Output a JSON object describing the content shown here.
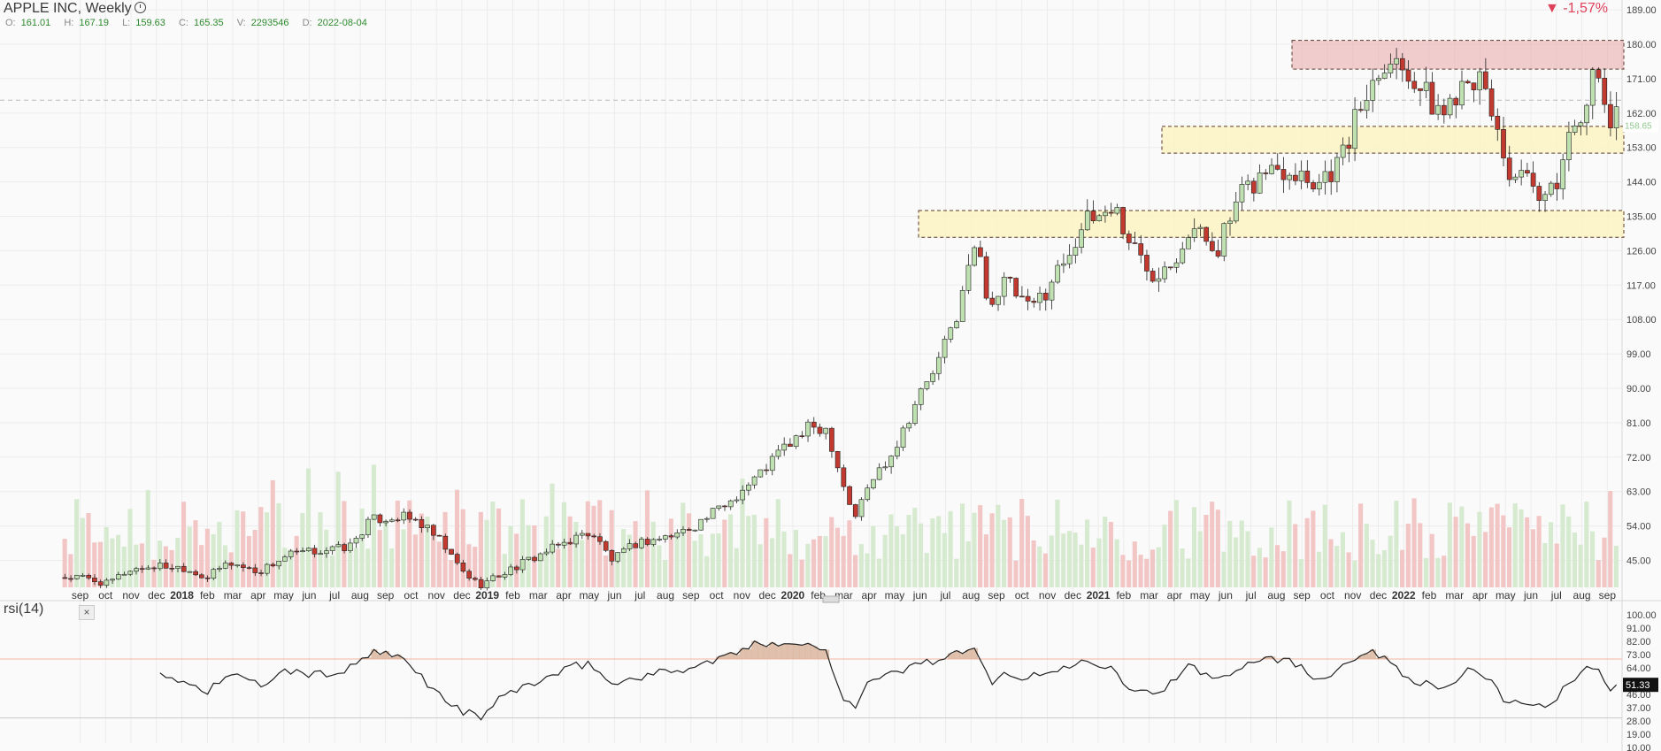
{
  "header": {
    "title": "APPLE INC, Weekly",
    "change": "-1,57%",
    "ohlc": [
      {
        "k": "O:",
        "v": "161.01"
      },
      {
        "k": "H:",
        "v": "167.19"
      },
      {
        "k": "L:",
        "v": "159.63"
      },
      {
        "k": "C:",
        "v": "165.35"
      },
      {
        "k": "V:",
        "v": "2293546"
      },
      {
        "k": "D:",
        "v": "2022-08-04"
      }
    ]
  },
  "indicator": {
    "label": "rsi(14)",
    "close_label": "×",
    "value_label": "51.33"
  },
  "colors": {
    "up": "#5faa45",
    "upFill": "#bfe0b0",
    "down": "#c23a2f",
    "downFill": "#c23a2f",
    "volUp": "#d6ead0",
    "volDown": "#f3c6c6",
    "resist": "#e9a5a8",
    "support": "#fbf3c2"
  },
  "chart_data": {
    "type": "candlestick",
    "title": "APPLE INC, Weekly",
    "y_ticks": [
      "189.00",
      "180.00",
      "171.00",
      "162.00",
      "153.00",
      "144.00",
      "135.00",
      "126.00",
      "117.00",
      "108.00",
      "99.00",
      "90.00",
      "81.00",
      "72.00",
      "63.00",
      "54.00",
      "45.00"
    ],
    "last_price_label": "158.65",
    "x_tick_labels": [
      "sep",
      "oct",
      "nov",
      "dec",
      "2018",
      "feb",
      "mar",
      "apr",
      "may",
      "jun",
      "jul",
      "aug",
      "sep",
      "oct",
      "nov",
      "dec",
      "2019",
      "feb",
      "mar",
      "apr",
      "may",
      "jun",
      "jul",
      "aug",
      "sep",
      "oct",
      "nov",
      "dec",
      "2020",
      "feb",
      "mar",
      "apr",
      "may",
      "jun",
      "jul",
      "aug",
      "sep",
      "oct",
      "nov",
      "dec",
      "2021",
      "feb",
      "mar",
      "apr",
      "may",
      "jun",
      "jul",
      "aug",
      "sep",
      "oct",
      "nov",
      "dec",
      "2022",
      "feb",
      "mar",
      "apr",
      "may",
      "jun",
      "jul",
      "aug",
      "sep"
    ],
    "price_path": [
      [
        2017.67,
        40.5
      ],
      [
        2017.75,
        38.8
      ],
      [
        2017.82,
        42.5
      ],
      [
        2017.92,
        43.6
      ],
      [
        2018.0,
        43.2
      ],
      [
        2018.08,
        40.5
      ],
      [
        2018.15,
        44.5
      ],
      [
        2018.25,
        42.0
      ],
      [
        2018.35,
        46.5
      ],
      [
        2018.45,
        47.5
      ],
      [
        2018.55,
        48.5
      ],
      [
        2018.62,
        55.5
      ],
      [
        2018.72,
        56.5
      ],
      [
        2018.78,
        55.0
      ],
      [
        2018.85,
        50.0
      ],
      [
        2018.92,
        42.5
      ],
      [
        2018.98,
        38.5
      ],
      [
        2019.08,
        42.5
      ],
      [
        2019.18,
        46.5
      ],
      [
        2019.3,
        51.0
      ],
      [
        2019.35,
        52.5
      ],
      [
        2019.42,
        45.0
      ],
      [
        2019.5,
        49.5
      ],
      [
        2019.62,
        51.5
      ],
      [
        2019.7,
        54.5
      ],
      [
        2019.8,
        60.0
      ],
      [
        2019.9,
        67.0
      ],
      [
        2019.98,
        74.0
      ],
      [
        2020.08,
        80.0
      ],
      [
        2020.13,
        79.5
      ],
      [
        2020.18,
        66.0
      ],
      [
        2020.22,
        56.0
      ],
      [
        2020.27,
        65.0
      ],
      [
        2020.35,
        74.0
      ],
      [
        2020.42,
        86.0
      ],
      [
        2020.5,
        97.0
      ],
      [
        2020.57,
        112.0
      ],
      [
        2020.62,
        128.0
      ],
      [
        2020.67,
        112.0
      ],
      [
        2020.72,
        118.0
      ],
      [
        2020.8,
        110.0
      ],
      [
        2020.88,
        119.0
      ],
      [
        2020.97,
        132.0
      ],
      [
        2021.08,
        138.0
      ],
      [
        2021.12,
        130.0
      ],
      [
        2021.2,
        120.0
      ],
      [
        2021.28,
        125.0
      ],
      [
        2021.33,
        132.0
      ],
      [
        2021.42,
        127.0
      ],
      [
        2021.5,
        140.0
      ],
      [
        2021.58,
        147.0
      ],
      [
        2021.67,
        148.0
      ],
      [
        2021.75,
        144.0
      ],
      [
        2021.83,
        150.0
      ],
      [
        2021.9,
        165.0
      ],
      [
        2021.97,
        177.0
      ],
      [
        2022.05,
        174.0
      ],
      [
        2022.12,
        165.0
      ],
      [
        2022.17,
        162.0
      ],
      [
        2022.25,
        174.0
      ],
      [
        2022.32,
        165.0
      ],
      [
        2022.38,
        147.0
      ],
      [
        2022.45,
        143.0
      ],
      [
        2022.5,
        137.0
      ],
      [
        2022.55,
        146.0
      ],
      [
        2022.6,
        160.0
      ],
      [
        2022.65,
        167.0
      ],
      [
        2022.67,
        172.0
      ],
      [
        2022.72,
        160.0
      ]
    ],
    "resistance_zone": [
      173.5,
      181.0
    ],
    "support_zones": [
      [
        151.5,
        158.5
      ],
      [
        129.5,
        136.5
      ]
    ],
    "rsi_ticks": [
      "100.00",
      "91.00",
      "82.00",
      "73.00",
      "64.00",
      "55.00",
      "46.00",
      "37.00",
      "28.00",
      "19.00",
      "10.00"
    ],
    "rsi_overbought": 70,
    "rsi_oversold": 30,
    "rsi_path": [
      [
        2017.92,
        58
      ],
      [
        2018.0,
        55
      ],
      [
        2018.08,
        48
      ],
      [
        2018.15,
        60
      ],
      [
        2018.25,
        52
      ],
      [
        2018.35,
        62
      ],
      [
        2018.45,
        59
      ],
      [
        2018.55,
        63
      ],
      [
        2018.62,
        74
      ],
      [
        2018.72,
        71
      ],
      [
        2018.78,
        60
      ],
      [
        2018.85,
        45
      ],
      [
        2018.92,
        35
      ],
      [
        2018.98,
        30
      ],
      [
        2019.08,
        48
      ],
      [
        2019.18,
        55
      ],
      [
        2019.3,
        65
      ],
      [
        2019.35,
        67
      ],
      [
        2019.42,
        52
      ],
      [
        2019.5,
        58
      ],
      [
        2019.62,
        62
      ],
      [
        2019.7,
        65
      ],
      [
        2019.8,
        72
      ],
      [
        2019.9,
        80
      ],
      [
        2019.98,
        82
      ],
      [
        2020.08,
        79
      ],
      [
        2020.13,
        75
      ],
      [
        2020.18,
        45
      ],
      [
        2020.22,
        38
      ],
      [
        2020.27,
        55
      ],
      [
        2020.35,
        60
      ],
      [
        2020.42,
        66
      ],
      [
        2020.5,
        70
      ],
      [
        2020.57,
        74
      ],
      [
        2020.62,
        75
      ],
      [
        2020.67,
        55
      ],
      [
        2020.72,
        60
      ],
      [
        2020.8,
        57
      ],
      [
        2020.88,
        62
      ],
      [
        2020.97,
        68
      ],
      [
        2021.08,
        66
      ],
      [
        2021.12,
        52
      ],
      [
        2021.2,
        46
      ],
      [
        2021.28,
        55
      ],
      [
        2021.33,
        65
      ],
      [
        2021.42,
        56
      ],
      [
        2021.5,
        66
      ],
      [
        2021.58,
        72
      ],
      [
        2021.67,
        68
      ],
      [
        2021.75,
        56
      ],
      [
        2021.83,
        65
      ],
      [
        2021.9,
        75
      ],
      [
        2021.97,
        72
      ],
      [
        2022.05,
        58
      ],
      [
        2022.12,
        52
      ],
      [
        2022.17,
        50
      ],
      [
        2022.25,
        62
      ],
      [
        2022.32,
        55
      ],
      [
        2022.38,
        40
      ],
      [
        2022.45,
        42
      ],
      [
        2022.5,
        35
      ],
      [
        2022.55,
        45
      ],
      [
        2022.6,
        58
      ],
      [
        2022.65,
        66
      ],
      [
        2022.67,
        64
      ],
      [
        2022.72,
        51
      ]
    ]
  }
}
